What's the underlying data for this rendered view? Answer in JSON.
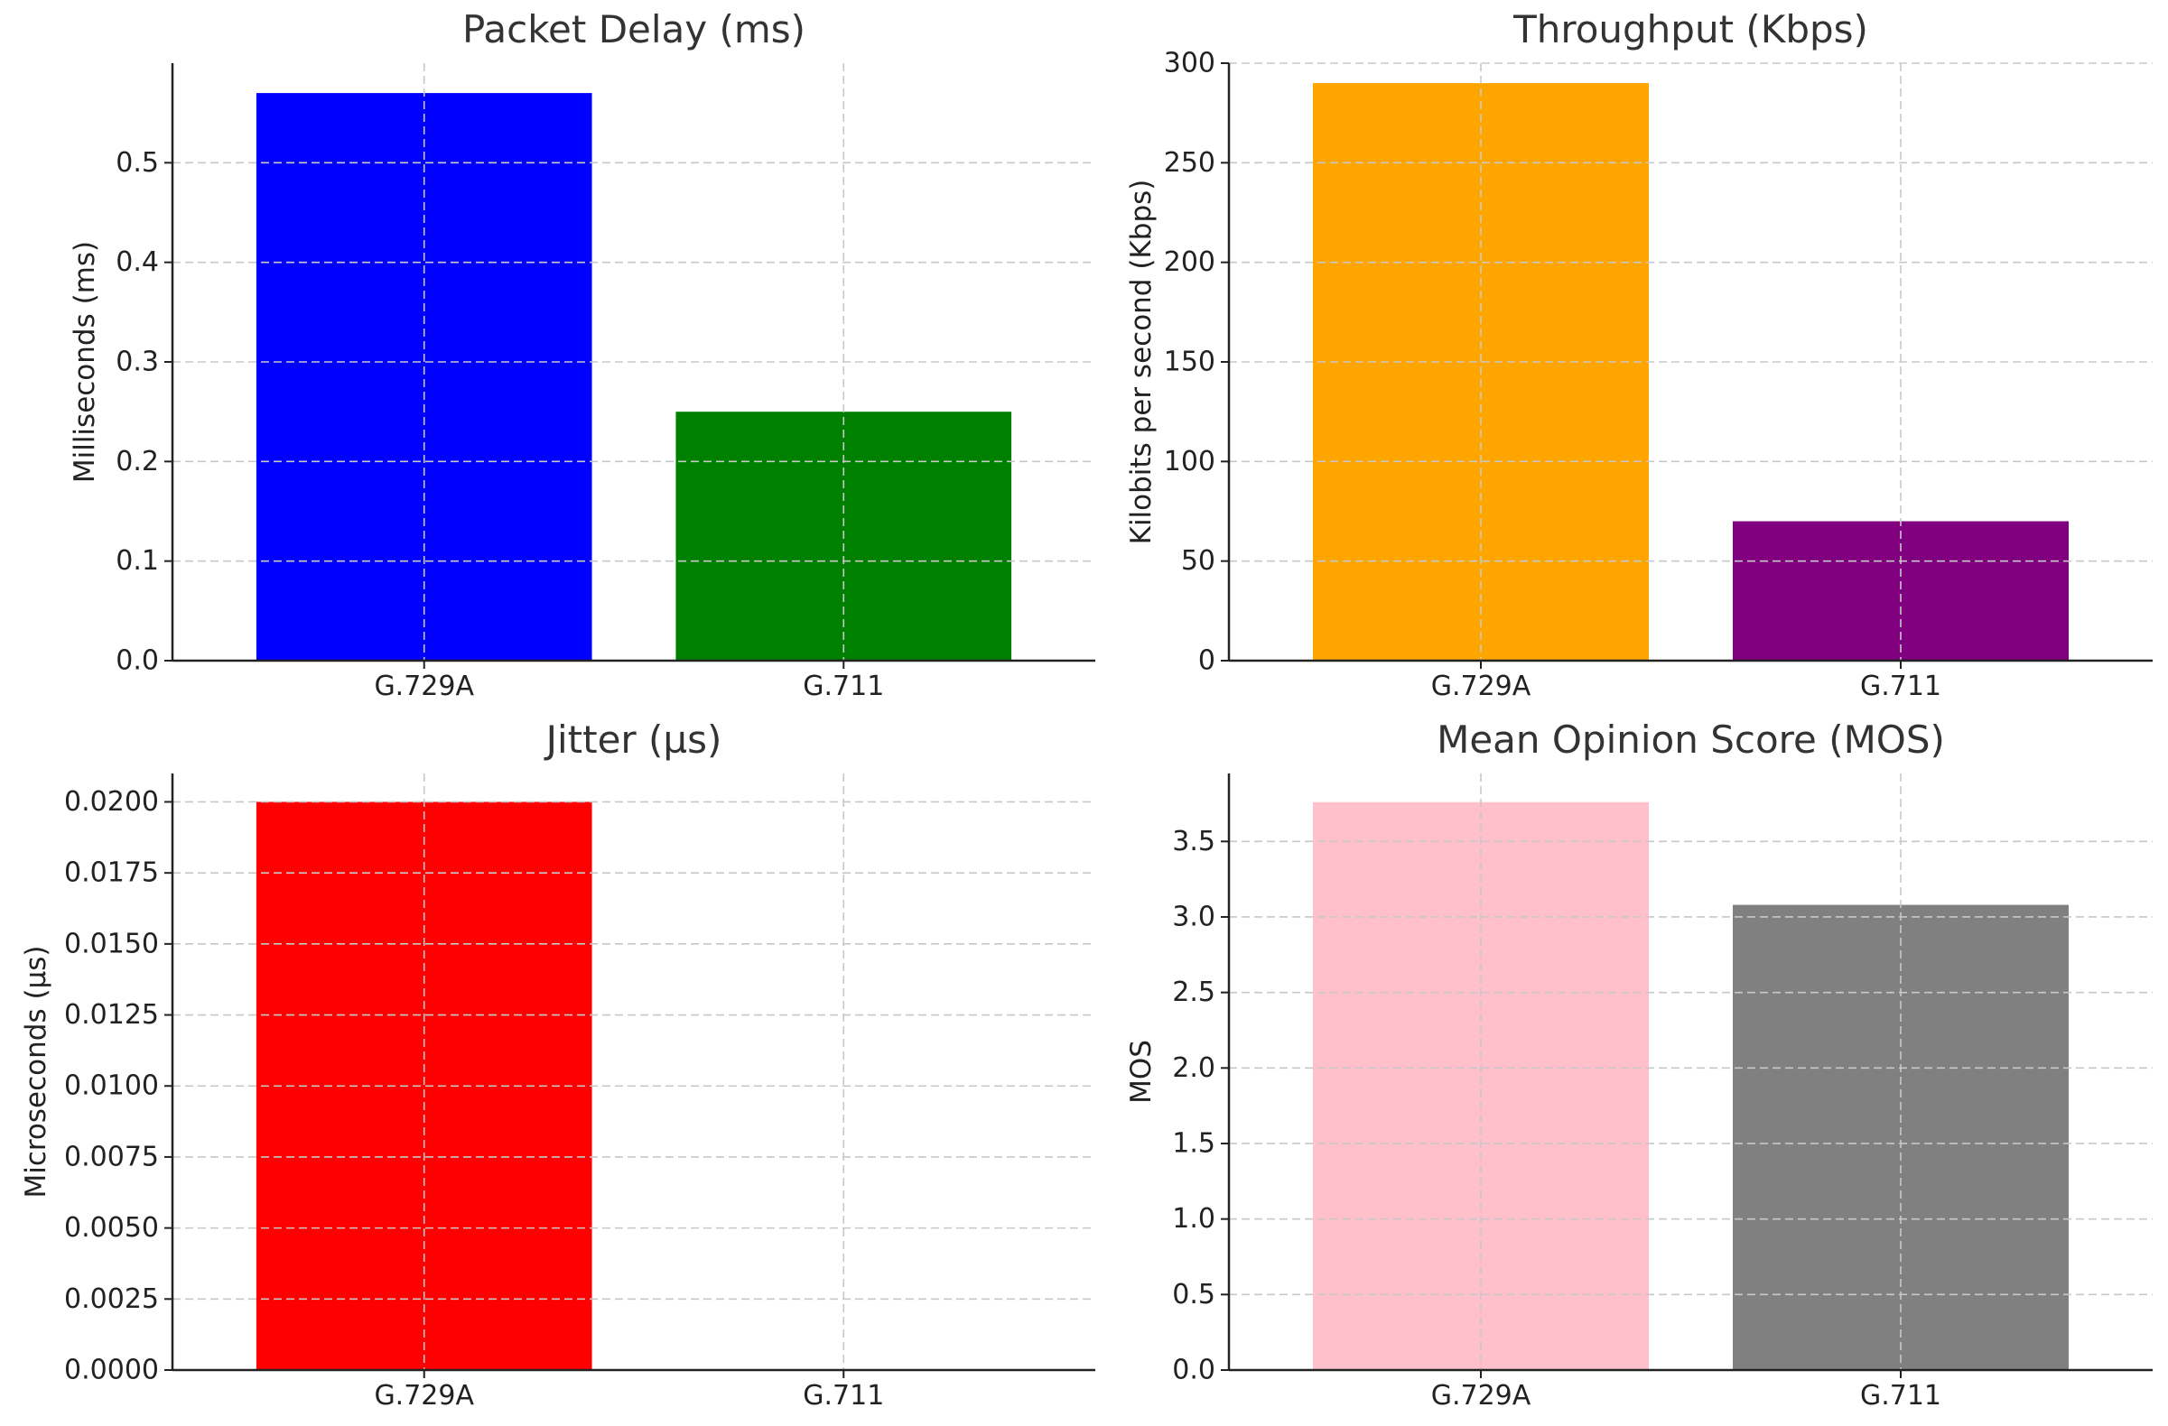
{
  "chart_data": [
    {
      "type": "bar",
      "title": "Packet Delay (ms)",
      "xlabel": "",
      "ylabel": "Milliseconds (ms)",
      "categories": [
        "G.729A",
        "G.711"
      ],
      "values": [
        0.57,
        0.25
      ],
      "colors": [
        "#0000ff",
        "#008000"
      ],
      "ylim": [
        0,
        0.6
      ],
      "yticks": [
        "0.0",
        "0.1",
        "0.2",
        "0.3",
        "0.4",
        "0.5"
      ],
      "grid": true,
      "legend": "none"
    },
    {
      "type": "bar",
      "title": "Throughput (Kbps)",
      "xlabel": "",
      "ylabel": "Kilobits per second (Kbps)",
      "categories": [
        "G.729A",
        "G.711"
      ],
      "values": [
        290,
        70
      ],
      "colors": [
        "#ffa500",
        "#800080"
      ],
      "ylim": [
        0,
        300
      ],
      "yticks": [
        "0",
        "50",
        "100",
        "150",
        "200",
        "250",
        "300"
      ],
      "grid": true,
      "legend": "none"
    },
    {
      "type": "bar",
      "title": "Jitter (µs)",
      "xlabel": "",
      "ylabel": "Microseconds (µs)",
      "categories": [
        "G.729A",
        "G.711"
      ],
      "values": [
        0.02,
        0
      ],
      "colors": [
        "#ff0000",
        "#00bfff"
      ],
      "ylim": [
        0,
        0.021
      ],
      "yticks": [
        "0.0000",
        "0.0025",
        "0.0050",
        "0.0075",
        "0.0100",
        "0.0125",
        "0.0150",
        "0.0175",
        "0.0200"
      ],
      "grid": true,
      "legend": "none"
    },
    {
      "type": "bar",
      "title": "Mean Opinion Score (MOS)",
      "xlabel": "",
      "ylabel": "MOS",
      "categories": [
        "G.729A",
        "G.711"
      ],
      "values": [
        3.76,
        3.08
      ],
      "colors": [
        "#ffc0cb",
        "#808080"
      ],
      "ylim": [
        0,
        3.95
      ],
      "yticks": [
        "0.0",
        "0.5",
        "1.0",
        "1.5",
        "2.0",
        "2.5",
        "3.0",
        "3.5"
      ],
      "grid": true,
      "legend": "none"
    }
  ]
}
